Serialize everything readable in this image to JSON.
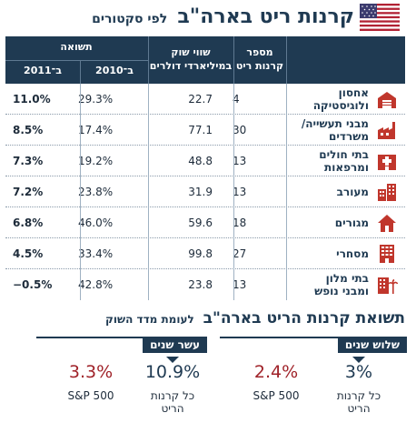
{
  "header": {
    "title": "קרנות ריט בארה\"ב",
    "subtitle": "לפי סקטורים",
    "flag_icon": "us-flag-icon"
  },
  "table": {
    "col_return": "תשואה",
    "col_return_2011": "ב־2011",
    "col_return_2010": "ב־2010",
    "col_cap": "שווי שוק\nבמיליארדי דולרים",
    "col_count": "מספר\nקרנות ריט",
    "rows": [
      {
        "name": "אחסון\nולוגיסטיקה",
        "icon": "warehouse-icon",
        "count": "4",
        "cap": "22.7",
        "ret2010": "29.3%",
        "ret2011": "11.0%"
      },
      {
        "name": "מבני תעשייה/\nמשרדים",
        "icon": "factory-icon",
        "count": "30",
        "cap": "77.1",
        "ret2010": "17.4%",
        "ret2011": "8.5%"
      },
      {
        "name": "בתי חולים\nומרפאות",
        "icon": "hospital-icon",
        "count": "13",
        "cap": "48.8",
        "ret2010": "19.2%",
        "ret2011": "7.3%"
      },
      {
        "name": "מעורב",
        "icon": "mixed-buildings-icon",
        "count": "13",
        "cap": "31.9",
        "ret2010": "23.8%",
        "ret2011": "7.2%"
      },
      {
        "name": "מגורים",
        "icon": "house-icon",
        "count": "18",
        "cap": "59.6",
        "ret2010": "46.0%",
        "ret2011": "6.8%"
      },
      {
        "name": "מסחרי",
        "icon": "commercial-building-icon",
        "count": "27",
        "cap": "99.8",
        "ret2010": "33.4%",
        "ret2011": "4.5%"
      },
      {
        "name": "בתי מלון\nומבני נופש",
        "icon": "hotel-palm-icon",
        "count": "13",
        "cap": "23.8",
        "ret2010": "42.8%",
        "ret2011": "−0.5%"
      }
    ]
  },
  "comparison": {
    "title": "תשואת קרנות הריט בארה\"ב",
    "subtitle": "לעומת מדד השוק",
    "groups": [
      {
        "tag": "שלוש שנים",
        "reit_value": "3%",
        "reit_label": "כל קרנות\nהריט",
        "index_value": "2.4%",
        "index_label": "S&P 500"
      },
      {
        "tag": "עשר שנים",
        "reit_value": "10.9%",
        "reit_label": "כל קרנות\nהריט",
        "index_value": "3.3%",
        "index_label": "S&P 500"
      }
    ]
  },
  "chart_data": {
    "type": "table",
    "title": "קרנות ריט בארה\"ב",
    "subtitle": "לפי סקטורים",
    "columns": [
      "מספר קרנות ריט",
      "שווי שוק במיליארדי דולרים",
      "תשואה ב־2010",
      "תשואה ב־2011"
    ],
    "rows": [
      [
        "אחסון ולוגיסטיקה",
        4,
        22.7,
        29.3,
        11.0
      ],
      [
        "מבני תעשייה/משרדים",
        30,
        77.1,
        17.4,
        8.5
      ],
      [
        "בתי חולים ומרפאות",
        13,
        48.8,
        19.2,
        7.3
      ],
      [
        "מעורב",
        13,
        31.9,
        23.8,
        7.2
      ],
      [
        "מגורים",
        18,
        59.6,
        46.0,
        6.8
      ],
      [
        "מסחרי",
        27,
        99.8,
        33.4,
        4.5
      ],
      [
        "בתי מלון ומבני נופש",
        13,
        23.8,
        42.8,
        -0.5
      ]
    ]
  },
  "colors": {
    "navy": "#1f3a52",
    "icon_red": "#c0362c",
    "accent_red": "#a0232a"
  }
}
